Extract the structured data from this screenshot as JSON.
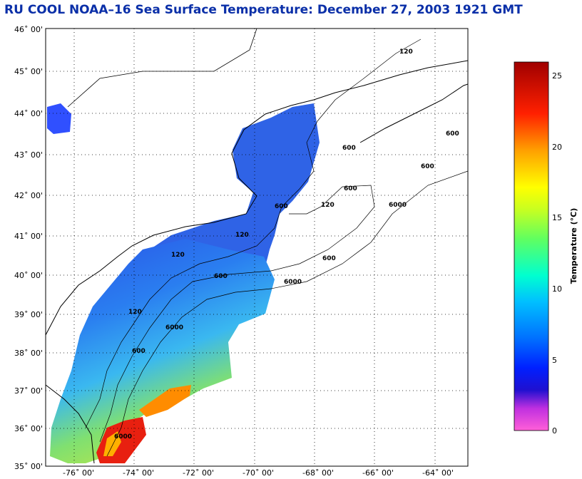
{
  "title": "RU COOL  NOAA–16  Sea Surface Temperature:  December 27, 2003 1921 GMT",
  "map": {
    "lat_labels": [
      "46˚ 00'",
      "45˚ 00'",
      "44˚ 00'",
      "43˚ 00'",
      "42˚ 00'",
      "41˚ 00'",
      "40˚ 00'",
      "39˚ 00'",
      "38˚ 00'",
      "37˚ 00'",
      "36˚ 00'",
      "35˚ 00'"
    ],
    "lon_labels": [
      "-76˚ 00'",
      "-74˚ 00'",
      "-72˚ 00'",
      "-70˚ 00'",
      "-68˚ 00'",
      "-66˚ 00'",
      "-64˚ 00'"
    ],
    "contour_labels": [
      "120",
      "600",
      "6000"
    ],
    "colors": {
      "land": "#ffffff",
      "coast": "#000000",
      "grid": "#000000"
    }
  },
  "colorbar": {
    "label": "Temperature (°C)",
    "ticks": [
      "0",
      "5",
      "10",
      "15",
      "20",
      "25"
    ],
    "range": [
      0,
      26
    ],
    "colors": [
      "#ff3fd8",
      "#b020e0",
      "#2a10d8",
      "#0030ff",
      "#0090ff",
      "#00e0ff",
      "#30ff90",
      "#c0ff20",
      "#ffff00",
      "#ff9000",
      "#ff2000",
      "#a00000"
    ]
  }
}
